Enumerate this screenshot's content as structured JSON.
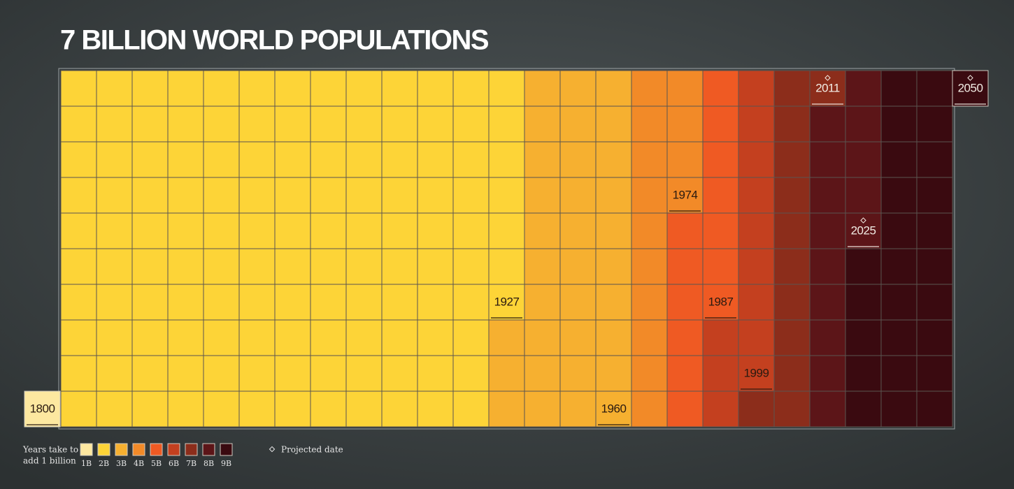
{
  "title": "7 BILLION WORLD POPULATIONS",
  "start_year": 1800,
  "periods": [
    {
      "label": "1B",
      "color": "#fde8a0",
      "end_year": 1800,
      "projected": false
    },
    {
      "label": "2B",
      "color": "#fdd437",
      "end_year": 1927,
      "projected": false
    },
    {
      "label": "3B",
      "color": "#f6b030",
      "end_year": 1960,
      "projected": false
    },
    {
      "label": "4B",
      "color": "#f28a28",
      "end_year": 1974,
      "projected": false
    },
    {
      "label": "5B",
      "color": "#ef5a23",
      "end_year": 1987,
      "projected": false
    },
    {
      "label": "6B",
      "color": "#c4401f",
      "end_year": 1999,
      "projected": false
    },
    {
      "label": "7B",
      "color": "#8c2d1b",
      "end_year": 2011,
      "projected": true
    },
    {
      "label": "8B",
      "color": "#5c1518",
      "end_year": 2025,
      "projected": true
    },
    {
      "label": "9B",
      "color": "#3a0a10",
      "end_year": 2050,
      "projected": true
    }
  ],
  "legend": {
    "title_lines": [
      "Years take to",
      "add 1 billion"
    ],
    "projected_note": "Projected date"
  }
}
